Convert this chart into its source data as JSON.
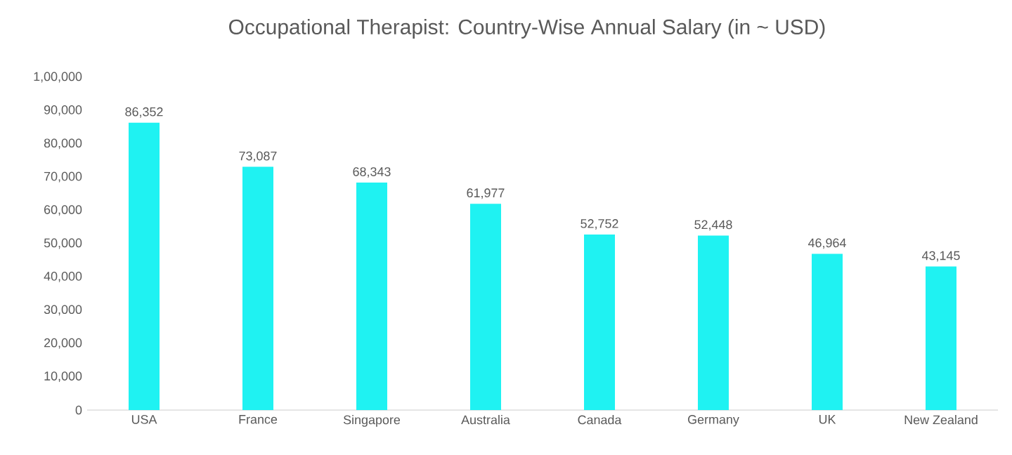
{
  "chart_data": {
    "type": "bar",
    "title": "Occupational Therapist: Country-Wise Annual Salary (in ~ USD)",
    "categories": [
      "USA",
      "France",
      "Singapore",
      "Australia",
      "Canada",
      "Germany",
      "UK",
      "New Zealand"
    ],
    "values": [
      86352,
      73087,
      68343,
      61977,
      52752,
      52448,
      46964,
      43145
    ],
    "value_labels": [
      "86,352",
      "73,087",
      "68,343",
      "61,977",
      "52,752",
      "52,448",
      "46,964",
      "43,145"
    ],
    "color": "#1ff2f2",
    "ylim": [
      0,
      100000
    ],
    "yticks": [
      0,
      {
        "value": 10000,
        "label": "10,000"
      },
      {
        "value": 20000,
        "label": "20,000"
      },
      {
        "value": 30000,
        "label": "30,000"
      },
      {
        "value": 40000,
        "label": "40,000"
      },
      {
        "value": 50000,
        "label": "50,000"
      },
      {
        "value": 60000,
        "label": "60,000"
      },
      {
        "value": 70000,
        "label": "70,000"
      },
      {
        "value": 80000,
        "label": "80,000"
      },
      {
        "value": 90000,
        "label": "90,000"
      },
      {
        "value": 100000,
        "label": "1,00,000"
      }
    ]
  }
}
